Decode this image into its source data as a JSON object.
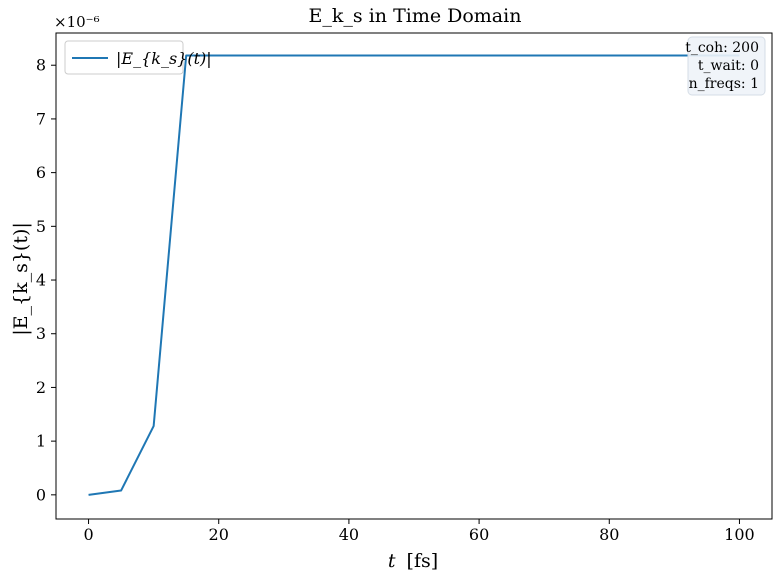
{
  "chart_data": {
    "type": "line",
    "title": "E_k_s in Time Domain",
    "xlabel_var": "t",
    "xlabel_unit": "[fs]",
    "ylabel": "|E_{k_s}(t)|",
    "y_multiplier": "×10⁻⁶",
    "xlim": [
      -5,
      105
    ],
    "ylim": [
      -0.45,
      8.6
    ],
    "x_ticks": [
      0,
      20,
      40,
      60,
      80,
      100
    ],
    "y_ticks": [
      0,
      1,
      2,
      3,
      4,
      5,
      6,
      7,
      8
    ],
    "grid": false,
    "legend_position": "top-left",
    "series": [
      {
        "name": "|E_{k_s}(t)|",
        "color": "#1f77b4",
        "x": [
          0,
          5,
          10,
          15,
          20,
          25,
          30,
          35,
          40,
          45,
          50,
          55,
          60,
          65,
          70,
          75,
          80,
          85,
          90,
          95,
          100
        ],
        "values": [
          0.0,
          0.08,
          1.28,
          8.18,
          8.18,
          8.18,
          8.18,
          8.18,
          8.18,
          8.18,
          8.18,
          8.18,
          8.18,
          8.18,
          8.18,
          8.18,
          8.18,
          8.18,
          8.18,
          8.18,
          8.18
        ]
      }
    ],
    "info_box": {
      "position": "top-right",
      "lines": [
        "t_coh: 200",
        "t_wait: 0",
        "n_freqs: 1"
      ]
    }
  }
}
